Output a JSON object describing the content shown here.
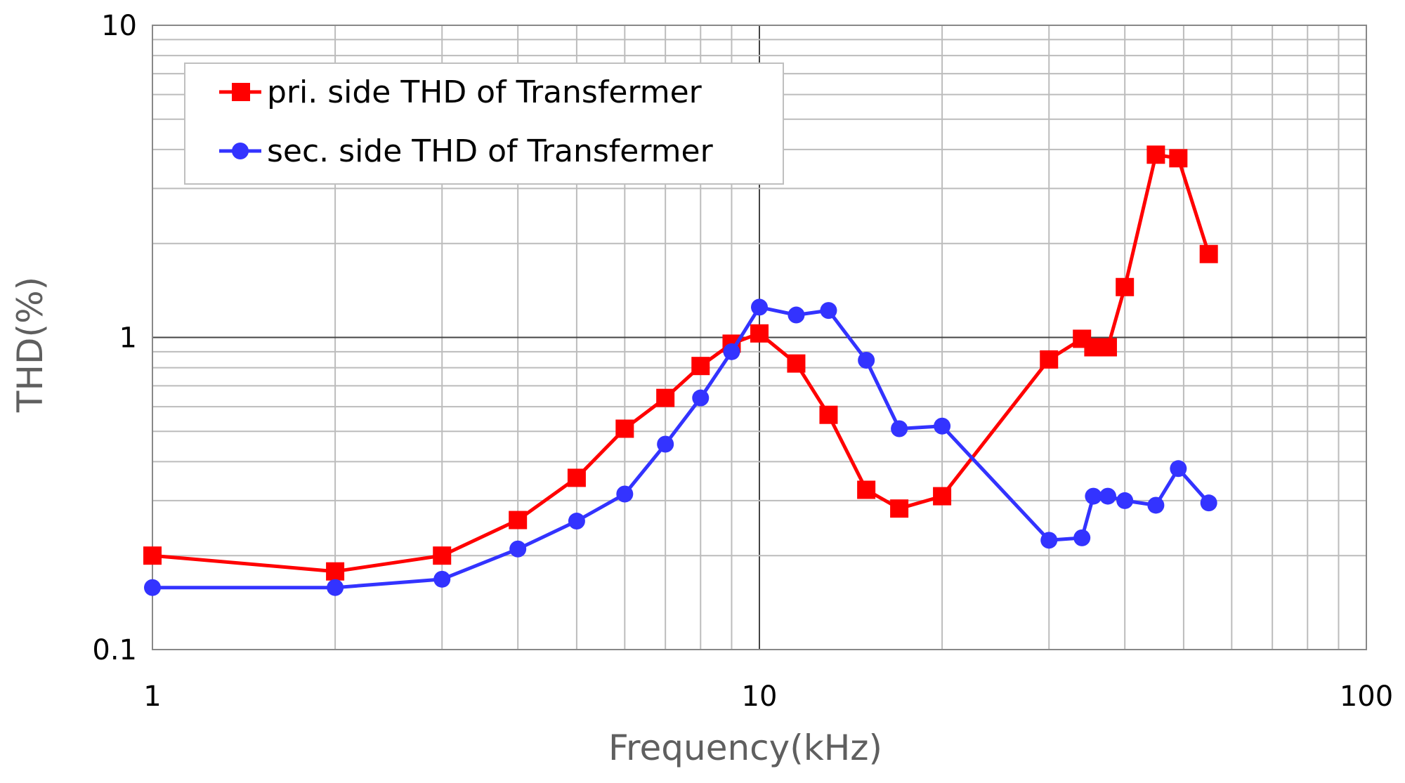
{
  "chart_data": {
    "type": "line",
    "title": "",
    "xlabel": "Frequency(kHz)",
    "ylabel": "THD(%)",
    "xscale": "log",
    "yscale": "log",
    "xlim": [
      1,
      100
    ],
    "ylim": [
      0.1,
      10
    ],
    "grid": true,
    "legend_position": "top-left",
    "x_tick_labels": [
      "1",
      "10",
      "100"
    ],
    "y_tick_labels": [
      "0.1",
      "1",
      "10"
    ],
    "series": [
      {
        "name": "pri. side THD of Transfermer",
        "color": "#ff0000",
        "marker": "square",
        "x": [
          1,
          2,
          3,
          4,
          5,
          6,
          7,
          8,
          9,
          10,
          11.5,
          13,
          15,
          17,
          20,
          30,
          34,
          35.5,
          37.5,
          40,
          45,
          49,
          55
        ],
        "y": [
          0.2,
          0.178,
          0.2,
          0.26,
          0.355,
          0.51,
          0.64,
          0.81,
          0.955,
          1.03,
          0.825,
          0.565,
          0.325,
          0.283,
          0.31,
          0.85,
          0.99,
          0.93,
          0.93,
          1.45,
          3.85,
          3.75,
          1.85
        ]
      },
      {
        "name": "sec. side THD of Transfermer",
        "color": "#3333ff",
        "marker": "circle",
        "x": [
          1,
          2,
          3,
          4,
          5,
          6,
          7,
          8,
          9,
          10,
          11.5,
          13,
          15,
          17,
          20,
          30,
          34,
          35.5,
          37.5,
          40,
          45,
          49,
          55
        ],
        "y": [
          0.158,
          0.158,
          0.168,
          0.21,
          0.258,
          0.315,
          0.455,
          0.64,
          0.9,
          1.25,
          1.18,
          1.22,
          0.845,
          0.51,
          0.52,
          0.224,
          0.228,
          0.31,
          0.31,
          0.3,
          0.29,
          0.38,
          0.295
        ]
      }
    ]
  }
}
